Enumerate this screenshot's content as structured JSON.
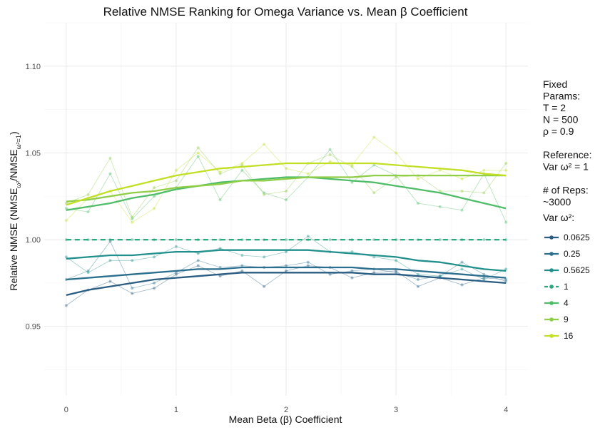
{
  "chart_data": {
    "type": "line",
    "title": "Relative NMSE Ranking for Omega Variance vs. Mean β Coefficient",
    "xlabel": "Mean Beta (β) Coefficient",
    "ylabel": "Relative NMSE (NMSE",
    "ylabel_sub1": "ω²",
    "ylabel_mid": "/NMSE",
    "ylabel_sub2": "ω²=1",
    "ylabel_end": ")",
    "xlim": [
      -0.2,
      4.2
    ],
    "ylim": [
      0.91,
      1.125
    ],
    "xticks": [
      0,
      1,
      2,
      3,
      4
    ],
    "yticks": [
      0.95,
      1.0,
      1.05,
      1.1
    ],
    "ytick_labels": [
      "0.95",
      "1.00",
      "1.05",
      "1.10"
    ],
    "grid": true,
    "legend_position": "right",
    "legend_title": "Var ω²:",
    "x": [
      0,
      0.2,
      0.4,
      0.6,
      0.8,
      1.0,
      1.2,
      1.4,
      1.6,
      1.8,
      2.0,
      2.2,
      2.4,
      2.6,
      2.8,
      3.0,
      3.2,
      3.4,
      3.6,
      3.8,
      4.0
    ],
    "series": [
      {
        "name": "0.0625",
        "color": "#2a5d82",
        "values": [
          0.962,
          0.971,
          0.976,
          0.969,
          0.972,
          0.98,
          0.985,
          0.979,
          0.982,
          0.973,
          0.982,
          0.985,
          0.984,
          0.978,
          0.981,
          0.982,
          0.973,
          0.978,
          0.974,
          0.978,
          0.977
        ],
        "smooth": [
          0.968,
          0.971,
          0.973,
          0.975,
          0.977,
          0.978,
          0.979,
          0.98,
          0.981,
          0.981,
          0.981,
          0.981,
          0.981,
          0.981,
          0.98,
          0.98,
          0.979,
          0.978,
          0.977,
          0.976,
          0.975
        ]
      },
      {
        "name": "0.25",
        "color": "#2b6f8e",
        "values": [
          0.977,
          0.982,
          0.999,
          0.972,
          0.975,
          0.981,
          0.988,
          0.984,
          0.985,
          0.984,
          0.985,
          0.987,
          0.98,
          0.982,
          0.983,
          0.981,
          0.977,
          0.979,
          0.987,
          0.98,
          0.976
        ],
        "smooth": [
          0.977,
          0.978,
          0.979,
          0.98,
          0.981,
          0.982,
          0.983,
          0.983,
          0.984,
          0.984,
          0.984,
          0.984,
          0.984,
          0.984,
          0.983,
          0.983,
          0.982,
          0.981,
          0.98,
          0.979,
          0.978
        ]
      },
      {
        "name": "0.5625",
        "color": "#21908c",
        "values": [
          0.99,
          0.981,
          0.988,
          0.988,
          0.99,
          0.996,
          0.992,
          0.995,
          0.991,
          0.99,
          0.993,
          1.002,
          0.993,
          0.993,
          0.99,
          0.988,
          0.98,
          0.979,
          0.983,
          0.977,
          0.983
        ],
        "smooth": [
          0.989,
          0.99,
          0.991,
          0.991,
          0.992,
          0.993,
          0.993,
          0.994,
          0.994,
          0.994,
          0.994,
          0.994,
          0.993,
          0.992,
          0.991,
          0.99,
          0.988,
          0.987,
          0.985,
          0.983,
          0.982
        ]
      },
      {
        "name": "1",
        "color": "#27a97f",
        "values": [
          1.0,
          1.0,
          1.0,
          1.0,
          1.0,
          1.0,
          1.0,
          1.0,
          1.0,
          1.0,
          1.0,
          1.0,
          1.0,
          1.0,
          1.0,
          1.0,
          1.0,
          1.0,
          1.0,
          1.0,
          1.0
        ],
        "smooth": [
          1.0,
          1.0,
          1.0,
          1.0,
          1.0,
          1.0,
          1.0,
          1.0,
          1.0,
          1.0,
          1.0,
          1.0,
          1.0,
          1.0,
          1.0,
          1.0,
          1.0,
          1.0,
          1.0,
          1.0,
          1.0
        ]
      },
      {
        "name": "4",
        "color": "#4fbd68",
        "values": [
          1.018,
          1.016,
          1.038,
          1.012,
          1.025,
          1.03,
          1.048,
          1.023,
          1.04,
          1.027,
          1.023,
          1.036,
          1.052,
          1.033,
          1.043,
          1.037,
          1.021,
          1.019,
          1.017,
          1.038,
          1.01
        ],
        "smooth": [
          1.017,
          1.019,
          1.021,
          1.024,
          1.026,
          1.029,
          1.031,
          1.033,
          1.034,
          1.035,
          1.036,
          1.036,
          1.035,
          1.034,
          1.033,
          1.031,
          1.029,
          1.027,
          1.024,
          1.021,
          1.018
        ]
      },
      {
        "name": "9",
        "color": "#8fce46",
        "values": [
          1.021,
          1.026,
          1.047,
          1.013,
          1.03,
          1.034,
          1.053,
          1.038,
          1.043,
          1.026,
          1.028,
          1.044,
          1.049,
          1.042,
          1.027,
          1.036,
          1.037,
          1.028,
          1.028,
          1.027,
          1.044
        ],
        "smooth": [
          1.022,
          1.023,
          1.025,
          1.027,
          1.028,
          1.03,
          1.031,
          1.032,
          1.034,
          1.034,
          1.035,
          1.036,
          1.036,
          1.036,
          1.037,
          1.037,
          1.037,
          1.037,
          1.037,
          1.037,
          1.037
        ]
      },
      {
        "name": "16",
        "color": "#c2df23",
        "values": [
          1.011,
          1.024,
          1.028,
          1.01,
          1.018,
          1.04,
          1.05,
          1.039,
          1.044,
          1.055,
          1.041,
          1.038,
          1.045,
          1.043,
          1.059,
          1.05,
          1.035,
          1.04,
          1.035,
          1.04,
          1.04
        ],
        "smooth": [
          1.02,
          1.024,
          1.028,
          1.031,
          1.034,
          1.037,
          1.039,
          1.041,
          1.042,
          1.043,
          1.044,
          1.044,
          1.044,
          1.044,
          1.044,
          1.043,
          1.042,
          1.041,
          1.04,
          1.038,
          1.037
        ]
      }
    ]
  },
  "side_panel": {
    "lines": [
      "Fixed",
      "Params:",
      "T = 2",
      "N = 500",
      "ρ = 0.9",
      "",
      "Reference:",
      "Var ω² = 1",
      "",
      "# of Reps:",
      "~3000"
    ]
  }
}
